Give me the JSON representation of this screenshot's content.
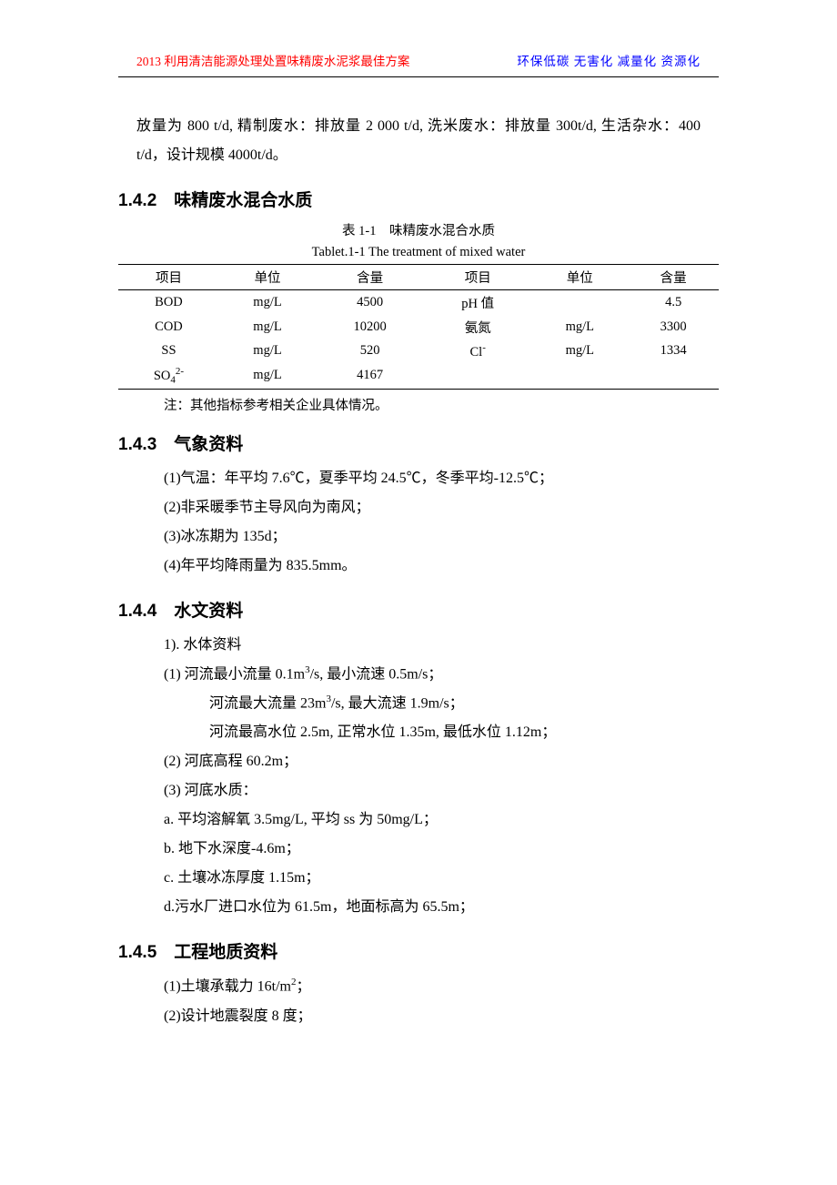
{
  "header": {
    "left": "2013 利用清洁能源处理处置味精废水泥浆最佳方案",
    "right": "环保低碳 无害化 减量化 资源化"
  },
  "paragraph1": "放量为 800 t/d, 精制废水：排放量 2 000 t/d, 洗米废水：排放量 300t/d, 生活杂水：400 t/d，设计规模 4000t/d。",
  "section142": {
    "heading": "1.4.2　味精废水混合水质",
    "table_caption": "表 1-1　味精废水混合水质",
    "table_subcaption": "Tablet.1-1 The treatment of mixed water",
    "table": {
      "headers": [
        "项目",
        "单位",
        "含量",
        "项目",
        "单位",
        "含量"
      ],
      "rows": [
        [
          "BOD",
          "mg/L",
          "4500",
          "pH 值",
          "",
          "4.5"
        ],
        [
          "COD",
          "mg/L",
          "10200",
          "氨氮",
          "mg/L",
          "3300"
        ],
        [
          "SS",
          "mg/L",
          "520",
          "Cl⁻",
          "mg/L",
          "1334"
        ],
        [
          "SO₄²⁻",
          "mg/L",
          "4167",
          "",
          "",
          ""
        ]
      ]
    },
    "note": "注：其他指标参考相关企业具体情况。"
  },
  "section143": {
    "heading": "1.4.3　气象资料",
    "items": [
      "(1)气温：年平均 7.6℃，夏季平均 24.5℃，冬季平均-12.5℃；",
      "(2)非采暖季节主导风向为南风；",
      "(3)冰冻期为 135d；",
      "(4)年平均降雨量为 835.5mm。"
    ]
  },
  "section144": {
    "heading": "1.4.4　水文资料",
    "sub1": "1). 水体资料",
    "item1a": "(1) 河流最小流量 0.1m³/s, 最小流速 0.5m/s；",
    "item1b": "河流最大流量 23m³/s, 最大流速 1.9m/s；",
    "item1c": "河流最高水位 2.5m, 正常水位 1.35m, 最低水位 1.12m；",
    "item2": "(2) 河底高程 60.2m；",
    "item3": "(3) 河底水质：",
    "itema": "a. 平均溶解氧 3.5mg/L, 平均 ss 为 50mg/L；",
    "itemb": "b. 地下水深度-4.6m；",
    "itemc": "c. 土壤冰冻厚度 1.15m；",
    "itemd": "d.污水厂进口水位为 61.5m，地面标高为 65.5m；"
  },
  "section145": {
    "heading": "1.4.5　工程地质资料",
    "item1": "(1)土壤承载力 16t/m²；",
    "item2": "(2)设计地震裂度 8 度；"
  }
}
